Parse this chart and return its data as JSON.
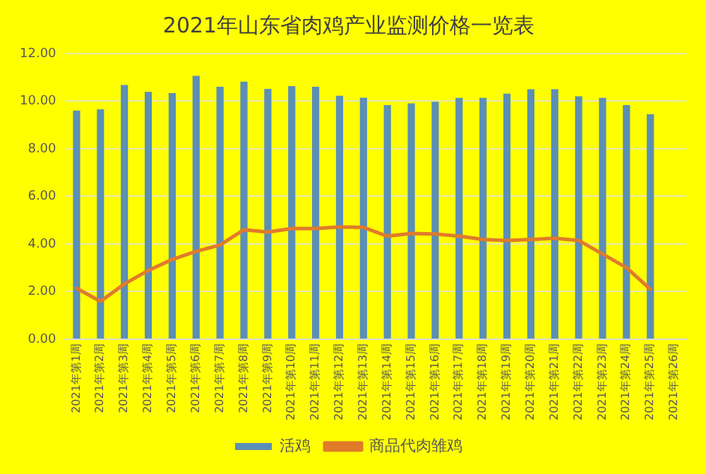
{
  "chart_data": {
    "type": "bar",
    "title": "2021年山东省肉鸡产业监测价格一览表",
    "categories": [
      "2021年第1周",
      "2021年第2周",
      "2021年第3周",
      "2021年第4周",
      "2021年第5周",
      "2021年第6周",
      "2021年第7周",
      "2021年第8周",
      "2021年第9周",
      "2021年第10周",
      "2021年第11周",
      "2021年第12周",
      "2021年第13周",
      "2021年第14周",
      "2021年第15周",
      "2021年第16周",
      "2021年第17周",
      "2021年第18周",
      "2021年第19周",
      "2021年第20周",
      "2021年第21周",
      "2021年第22周",
      "2021年第23周",
      "2021年第24周",
      "2021年第25周",
      "2021年第26周"
    ],
    "series": [
      {
        "name": "活鸡",
        "color": "#5b8fb5",
        "values": [
          9.61,
          9.66,
          10.68,
          10.39,
          10.34,
          11.07,
          10.61,
          10.82,
          10.52,
          10.64,
          10.61,
          10.23,
          10.15,
          9.84,
          9.91,
          9.98,
          10.14,
          10.14,
          10.32,
          10.5,
          10.5,
          10.21,
          10.14,
          9.84,
          9.45,
          null
        ]
      },
      {
        "name": "商品代肉雏鸡",
        "type": "line",
        "color": "#e07b2a",
        "values": [
          2.14,
          1.59,
          2.32,
          2.89,
          3.35,
          3.69,
          3.96,
          4.6,
          4.5,
          4.65,
          4.65,
          4.72,
          4.7,
          4.33,
          4.44,
          4.42,
          4.33,
          4.19,
          4.15,
          4.19,
          4.24,
          4.15,
          3.58,
          3.01,
          2.1,
          null
        ]
      }
    ],
    "ylim": [
      0,
      12
    ],
    "yticks": [
      {
        "value": 0,
        "label": "0.00"
      },
      {
        "value": 2,
        "label": "2.00"
      },
      {
        "value": 4,
        "label": "4.00"
      },
      {
        "value": 6,
        "label": "6.00"
      },
      {
        "value": 8,
        "label": "8.00"
      },
      {
        "value": 10,
        "label": "10.00"
      },
      {
        "value": 12,
        "label": "12.00"
      }
    ],
    "grid": "y",
    "legend": "bottom",
    "marker": "none",
    "line_style": "solid"
  }
}
